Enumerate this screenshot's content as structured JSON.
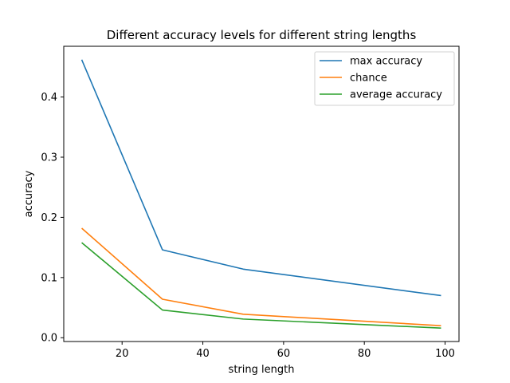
{
  "chart_data": {
    "type": "line",
    "title": "Different accuracy levels for different string lengths",
    "xlabel": "string length",
    "ylabel": "accuracy",
    "x": [
      10,
      30,
      50,
      99
    ],
    "series": [
      {
        "name": "max accuracy",
        "color": "#1f77b4",
        "values": [
          0.462,
          0.146,
          0.114,
          0.07
        ]
      },
      {
        "name": "chance",
        "color": "#ff7f0e",
        "values": [
          0.182,
          0.064,
          0.039,
          0.02
        ]
      },
      {
        "name": "average accuracy",
        "color": "#2ca02c",
        "values": [
          0.158,
          0.046,
          0.031,
          0.016
        ]
      }
    ],
    "xlim": [
      5.55,
      103.45
    ],
    "ylim": [
      -0.0063,
      0.4843
    ],
    "xticks": [
      20,
      40,
      60,
      80,
      100
    ],
    "xtick_labels": [
      "20",
      "40",
      "60",
      "80",
      "100"
    ],
    "yticks": [
      0.0,
      0.1,
      0.2,
      0.3,
      0.4
    ],
    "ytick_labels": [
      "0.0",
      "0.1",
      "0.2",
      "0.3",
      "0.4"
    ],
    "grid": false,
    "legend_position": "top-right"
  }
}
